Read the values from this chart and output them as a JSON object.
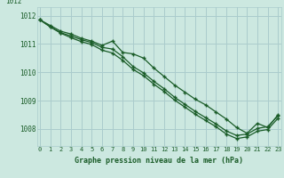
{
  "title": "Graphe pression niveau de la mer (hPa)",
  "bg_color": "#cce8e0",
  "line_color": "#1a5c28",
  "grid_color": "#aacccc",
  "ylim": [
    1007.4,
    1012.3
  ],
  "xlim": [
    -0.3,
    23.3
  ],
  "yticks": [
    1008,
    1009,
    1010,
    1011,
    1012
  ],
  "xticks": [
    0,
    1,
    2,
    3,
    4,
    5,
    6,
    7,
    8,
    9,
    10,
    11,
    12,
    13,
    14,
    15,
    16,
    17,
    18,
    19,
    20,
    21,
    22,
    23
  ],
  "hours": [
    0,
    1,
    2,
    3,
    4,
    5,
    6,
    7,
    8,
    9,
    10,
    11,
    12,
    13,
    14,
    15,
    16,
    17,
    18,
    19,
    20,
    21,
    22,
    23
  ],
  "line1": [
    1011.85,
    1011.65,
    1011.45,
    1011.35,
    1011.2,
    1011.1,
    1010.95,
    1011.1,
    1010.7,
    1010.65,
    1010.5,
    1010.15,
    1009.85,
    1009.55,
    1009.3,
    1009.05,
    1008.85,
    1008.6,
    1008.35,
    1008.05,
    1007.85,
    1008.2,
    1008.05,
    1008.5
  ],
  "line2": [
    1011.85,
    1011.6,
    1011.4,
    1011.28,
    1011.15,
    1011.05,
    1010.88,
    1010.82,
    1010.55,
    1010.2,
    1009.98,
    1009.68,
    1009.42,
    1009.12,
    1008.87,
    1008.62,
    1008.4,
    1008.18,
    1007.93,
    1007.77,
    1007.82,
    1008.02,
    1008.08,
    1008.47
  ],
  "line3": [
    1011.85,
    1011.6,
    1011.38,
    1011.22,
    1011.08,
    1010.98,
    1010.78,
    1010.68,
    1010.42,
    1010.1,
    1009.88,
    1009.58,
    1009.32,
    1009.02,
    1008.77,
    1008.52,
    1008.3,
    1008.08,
    1007.82,
    1007.66,
    1007.72,
    1007.92,
    1007.98,
    1008.38
  ]
}
